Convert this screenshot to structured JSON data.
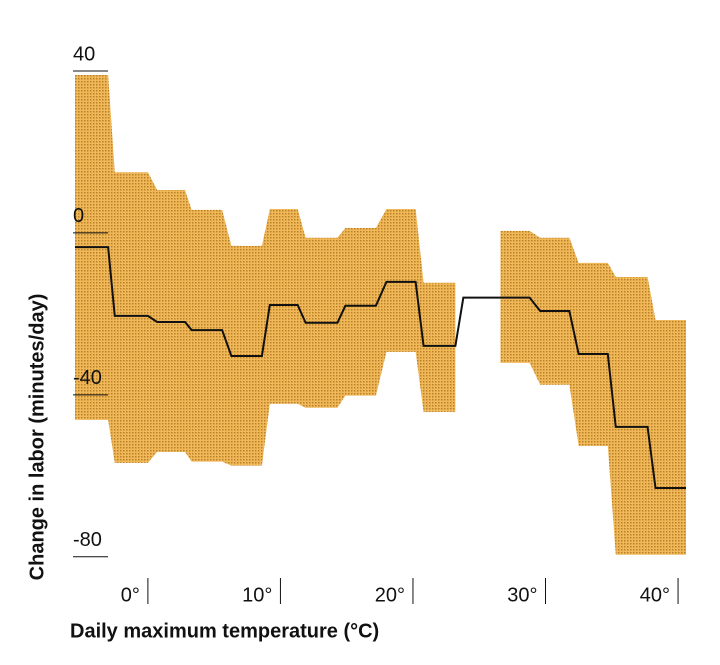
{
  "chart_data": {
    "type": "line",
    "xlabel": "Daily maximum temperature (°C)",
    "ylabel": "Change in labor (minutes/day)",
    "x": [
      -5.5,
      -3.0,
      -2.5,
      0,
      0.7,
      2.8,
      3.3,
      5.6,
      6.3,
      8.6,
      9.2,
      11.3,
      11.9,
      14.3,
      14.9,
      17.2,
      18.0,
      20.2,
      20.8,
      23.2,
      23.8,
      26.3,
      26.6,
      28.8,
      29.6,
      31.8,
      32.5,
      34.7,
      35.3,
      37.7,
      38.3,
      40.6
    ],
    "line": {
      "color": "#111111",
      "values": [
        -3.5,
        -3.5,
        -20.5,
        -20.5,
        -22,
        -22,
        -24,
        -24,
        -30.4,
        -30.4,
        -17.8,
        -17.8,
        -22.2,
        -22.2,
        -18,
        -18,
        -12.1,
        -12.1,
        -27.9,
        -27.9,
        -16,
        -16,
        -16,
        -16,
        -19.3,
        -19.3,
        -29.9,
        -29.9,
        -47.9,
        -47.9,
        -63,
        -63
      ]
    },
    "band": {
      "color": "#e2a23e",
      "upper": [
        39,
        39,
        15,
        15,
        10.6,
        10.6,
        5.7,
        5.7,
        -3.2,
        -3.2,
        5.9,
        5.9,
        -1.2,
        -1.2,
        1.2,
        1.2,
        5.9,
        5.9,
        -12.3,
        -12.3,
        null,
        null,
        0.5,
        0.5,
        -1.2,
        -1.2,
        -7.4,
        -7.4,
        -10.9,
        -10.9,
        -21.5,
        -21.5
      ],
      "lower": [
        -46.2,
        -46.2,
        -56.8,
        -56.8,
        -54.1,
        -54.1,
        -56.5,
        -56.5,
        -57.5,
        -57.5,
        -42.2,
        -42.2,
        -43.2,
        -43.2,
        -40.2,
        -40.2,
        -29.4,
        -29.4,
        -44.2,
        -44.2,
        null,
        null,
        -32.1,
        -32.1,
        -37.5,
        -37.5,
        -52.6,
        -52.6,
        -79.5,
        -79.5,
        -79.5,
        -79.5
      ]
    },
    "xlim": [
      -5.5,
      40.6
    ],
    "ylim": [
      -85,
      45
    ],
    "xticks": [
      {
        "value": 0,
        "label": "0°"
      },
      {
        "value": 10,
        "label": "10°"
      },
      {
        "value": 20,
        "label": "20°"
      },
      {
        "value": 30,
        "label": "30°"
      },
      {
        "value": 40,
        "label": "40°"
      }
    ],
    "yticks": [
      -80,
      -40,
      0,
      40
    ]
  }
}
